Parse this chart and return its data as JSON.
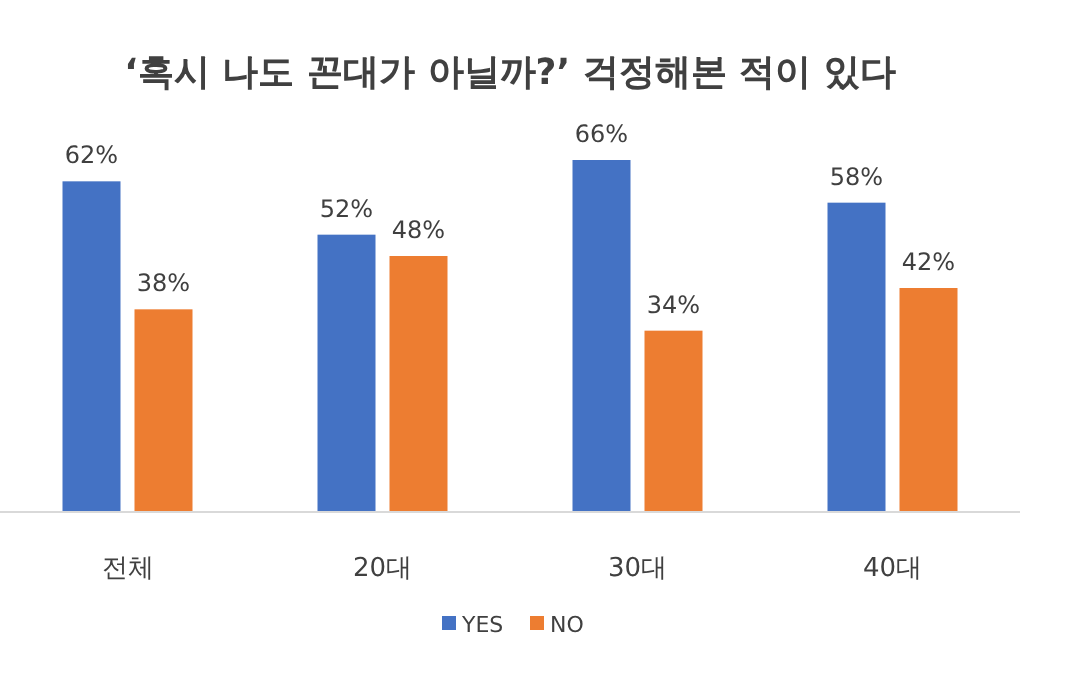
{
  "chart_data": {
    "type": "bar",
    "title": "‘혹시 나도 꼰대가 아닐까?’ 걱정해본 적이 있다",
    "categories": [
      "전체",
      "20대",
      "30대",
      "40대"
    ],
    "series": [
      {
        "name": "YES",
        "color": "#4472c4",
        "values": [
          62,
          52,
          66,
          58
        ],
        "value_labels": [
          "62%",
          "52%",
          "66%",
          "58%"
        ]
      },
      {
        "name": "NO",
        "color": "#ed7d31",
        "values": [
          38,
          48,
          34,
          42
        ],
        "value_labels": [
          "38%",
          "48%",
          "34%",
          "42%"
        ]
      }
    ],
    "legend": "bottom"
  }
}
